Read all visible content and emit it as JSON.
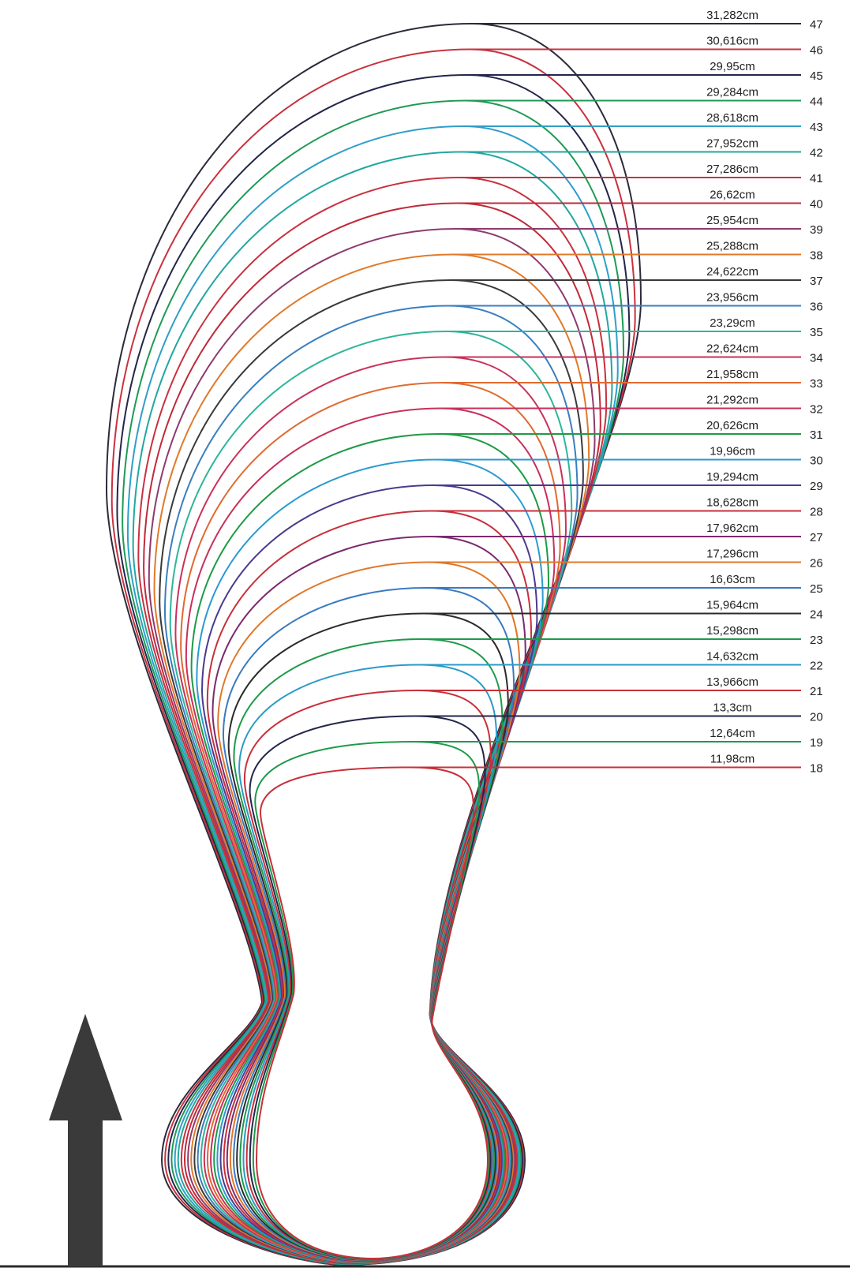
{
  "sizes": [
    {
      "number": "47",
      "length": "31,282cm",
      "color": "#2b2b3a"
    },
    {
      "number": "46",
      "length": "30,616cm",
      "color": "#c8323f"
    },
    {
      "number": "45",
      "length": "29,95cm",
      "color": "#23264a"
    },
    {
      "number": "44",
      "length": "29,284cm",
      "color": "#1f9a55"
    },
    {
      "number": "43",
      "length": "28,618cm",
      "color": "#2f9fc8"
    },
    {
      "number": "42",
      "length": "27,952cm",
      "color": "#23a7a0"
    },
    {
      "number": "41",
      "length": "27,286cm",
      "color": "#c83240"
    },
    {
      "number": "40",
      "length": "26,62cm",
      "color": "#c02a3a"
    },
    {
      "number": "39",
      "length": "25,954cm",
      "color": "#8e3a6e"
    },
    {
      "number": "38",
      "length": "25,288cm",
      "color": "#e07a2a"
    },
    {
      "number": "37",
      "length": "24,622cm",
      "color": "#3a3a3a"
    },
    {
      "number": "36",
      "length": "23,956cm",
      "color": "#3a7fc0"
    },
    {
      "number": "35",
      "length": "23,29cm",
      "color": "#2fb59a"
    },
    {
      "number": "34",
      "length": "22,624cm",
      "color": "#c8325a"
    },
    {
      "number": "33",
      "length": "21,958cm",
      "color": "#e06a30"
    },
    {
      "number": "32",
      "length": "21,292cm",
      "color": "#c8305a"
    },
    {
      "number": "31",
      "length": "20,626cm",
      "color": "#1f9a45"
    },
    {
      "number": "30",
      "length": "19,96cm",
      "color": "#2a9ad0"
    },
    {
      "number": "29",
      "length": "19,294cm",
      "color": "#4a3a8e"
    },
    {
      "number": "28",
      "length": "18,628cm",
      "color": "#c8303a"
    },
    {
      "number": "27",
      "length": "17,962cm",
      "color": "#7a2a6e"
    },
    {
      "number": "26",
      "length": "17,296cm",
      "color": "#e0782a"
    },
    {
      "number": "25",
      "length": "16,63cm",
      "color": "#3a7ac0"
    },
    {
      "number": "24",
      "length": "15,964cm",
      "color": "#2a2a2a"
    },
    {
      "number": "23",
      "length": "15,298cm",
      "color": "#1f9a4a"
    },
    {
      "number": "22",
      "length": "14,632cm",
      "color": "#2a9ac8"
    },
    {
      "number": "21",
      "length": "13,966cm",
      "color": "#c8303a"
    },
    {
      "number": "20",
      "length": "13,3cm",
      "color": "#23264a"
    },
    {
      "number": "19",
      "length": "12,64cm",
      "color": "#1f9a4a"
    },
    {
      "number": "18",
      "length": "11,98cm",
      "color": "#c8303a"
    }
  ],
  "arrow_color": "#3a3a3a"
}
